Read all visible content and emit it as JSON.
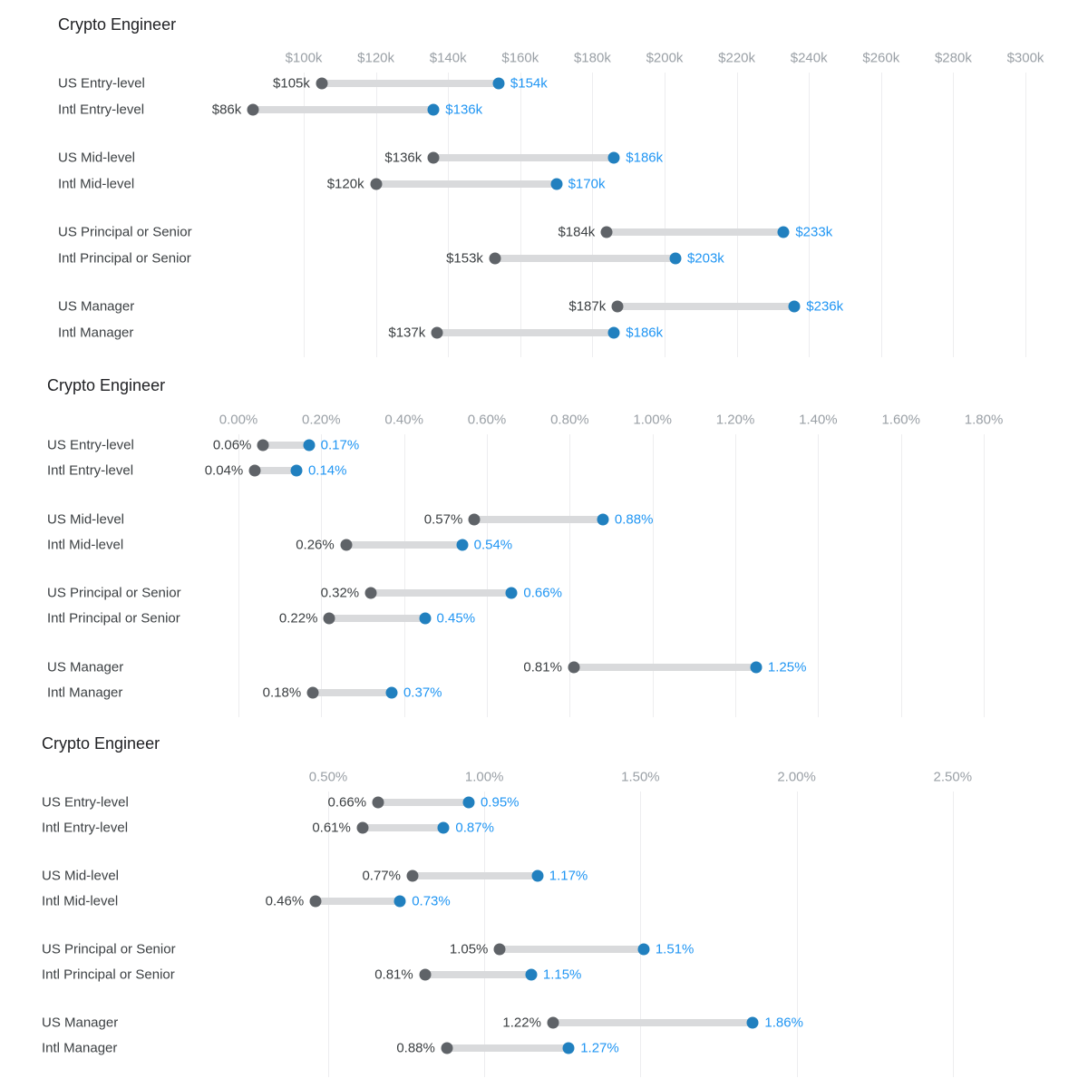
{
  "colors": {
    "accent_blue_text": "#2196f3",
    "accent_blue_dot": "#2180bf",
    "start_dot_gray": "#5f6368",
    "range_bar_gray": "#d9dadc",
    "gridline": "#ededef",
    "tick_label_gray": "#9aa0a6",
    "category_text": "#3c4043",
    "title_text": "#202124"
  },
  "chart_data": [
    {
      "type": "dumbbell",
      "title": "Crypto Engineer",
      "unit": "USD thousands (salary)",
      "axis": {
        "min": 100,
        "max": 300,
        "tick_values": [
          100,
          120,
          140,
          160,
          180,
          200,
          220,
          240,
          260,
          280,
          300
        ],
        "tick_labels": [
          "$100k",
          "$120k",
          "$140k",
          "$160k",
          "$180k",
          "$200k",
          "$220k",
          "$240k",
          "$260k",
          "$280k",
          "$300k"
        ]
      },
      "rows": [
        {
          "label": "US Entry-level",
          "low": 105,
          "high": 154,
          "low_label": "$105k",
          "high_label": "$154k"
        },
        {
          "label": "Intl Entry-level",
          "low": 86,
          "high": 136,
          "low_label": "$86k",
          "high_label": "$136k"
        },
        {
          "label": "US Mid-level",
          "low": 136,
          "high": 186,
          "low_label": "$136k",
          "high_label": "$186k"
        },
        {
          "label": "Intl Mid-level",
          "low": 120,
          "high": 170,
          "low_label": "$120k",
          "high_label": "$170k"
        },
        {
          "label": "US Principal or Senior",
          "low": 184,
          "high": 233,
          "low_label": "$184k",
          "high_label": "$233k"
        },
        {
          "label": "Intl Principal or Senior",
          "low": 153,
          "high": 203,
          "low_label": "$153k",
          "high_label": "$203k"
        },
        {
          "label": "US Manager",
          "low": 187,
          "high": 236,
          "low_label": "$187k",
          "high_label": "$236k"
        },
        {
          "label": "Intl Manager",
          "low": 137,
          "high": 186,
          "low_label": "$137k",
          "high_label": "$186k"
        }
      ]
    },
    {
      "type": "dumbbell",
      "title": "Crypto Engineer",
      "unit": "percent",
      "axis": {
        "min": 0.0,
        "max": 1.8,
        "tick_values": [
          0.0,
          0.2,
          0.4,
          0.6,
          0.8,
          1.0,
          1.2,
          1.4,
          1.6,
          1.8
        ],
        "tick_labels": [
          "0.00%",
          "0.20%",
          "0.40%",
          "0.60%",
          "0.80%",
          "1.00%",
          "1.20%",
          "1.40%",
          "1.60%",
          "1.80%"
        ]
      },
      "rows": [
        {
          "label": "US Entry-level",
          "low": 0.06,
          "high": 0.17,
          "low_label": "0.06%",
          "high_label": "0.17%"
        },
        {
          "label": "Intl Entry-level",
          "low": 0.04,
          "high": 0.14,
          "low_label": "0.04%",
          "high_label": "0.14%"
        },
        {
          "label": "US Mid-level",
          "low": 0.57,
          "high": 0.88,
          "low_label": "0.57%",
          "high_label": "0.88%"
        },
        {
          "label": "Intl Mid-level",
          "low": 0.26,
          "high": 0.54,
          "low_label": "0.26%",
          "high_label": "0.54%"
        },
        {
          "label": "US Principal or Senior",
          "low": 0.32,
          "high": 0.66,
          "low_label": "0.32%",
          "high_label": "0.66%"
        },
        {
          "label": "Intl Principal or Senior",
          "low": 0.22,
          "high": 0.45,
          "low_label": "0.22%",
          "high_label": "0.45%"
        },
        {
          "label": "US Manager",
          "low": 0.81,
          "high": 1.25,
          "low_label": "0.81%",
          "high_label": "1.25%"
        },
        {
          "label": "Intl Manager",
          "low": 0.18,
          "high": 0.37,
          "low_label": "0.18%",
          "high_label": "0.37%"
        }
      ]
    },
    {
      "type": "dumbbell",
      "title": "Crypto Engineer",
      "unit": "percent",
      "axis": {
        "min": 0.5,
        "max": 2.5,
        "tick_values": [
          0.5,
          1.0,
          1.5,
          2.0,
          2.5
        ],
        "tick_labels": [
          "0.50%",
          "1.00%",
          "1.50%",
          "2.00%",
          "2.50%"
        ]
      },
      "rows": [
        {
          "label": "US Entry-level",
          "low": 0.66,
          "high": 0.95,
          "low_label": "0.66%",
          "high_label": "0.95%"
        },
        {
          "label": "Intl Entry-level",
          "low": 0.61,
          "high": 0.87,
          "low_label": "0.61%",
          "high_label": "0.87%"
        },
        {
          "label": "US Mid-level",
          "low": 0.77,
          "high": 1.17,
          "low_label": "0.77%",
          "high_label": "1.17%"
        },
        {
          "label": "Intl Mid-level",
          "low": 0.46,
          "high": 0.73,
          "low_label": "0.46%",
          "high_label": "0.73%"
        },
        {
          "label": "US Principal or Senior",
          "low": 1.05,
          "high": 1.51,
          "low_label": "1.05%",
          "high_label": "1.51%"
        },
        {
          "label": "Intl Principal or Senior",
          "low": 0.81,
          "high": 1.15,
          "low_label": "0.81%",
          "high_label": "1.15%"
        },
        {
          "label": "US Manager",
          "low": 1.22,
          "high": 1.86,
          "low_label": "1.22%",
          "high_label": "1.86%"
        },
        {
          "label": "Intl Manager",
          "low": 0.88,
          "high": 1.27,
          "low_label": "0.88%",
          "high_label": "1.27%"
        }
      ]
    }
  ]
}
